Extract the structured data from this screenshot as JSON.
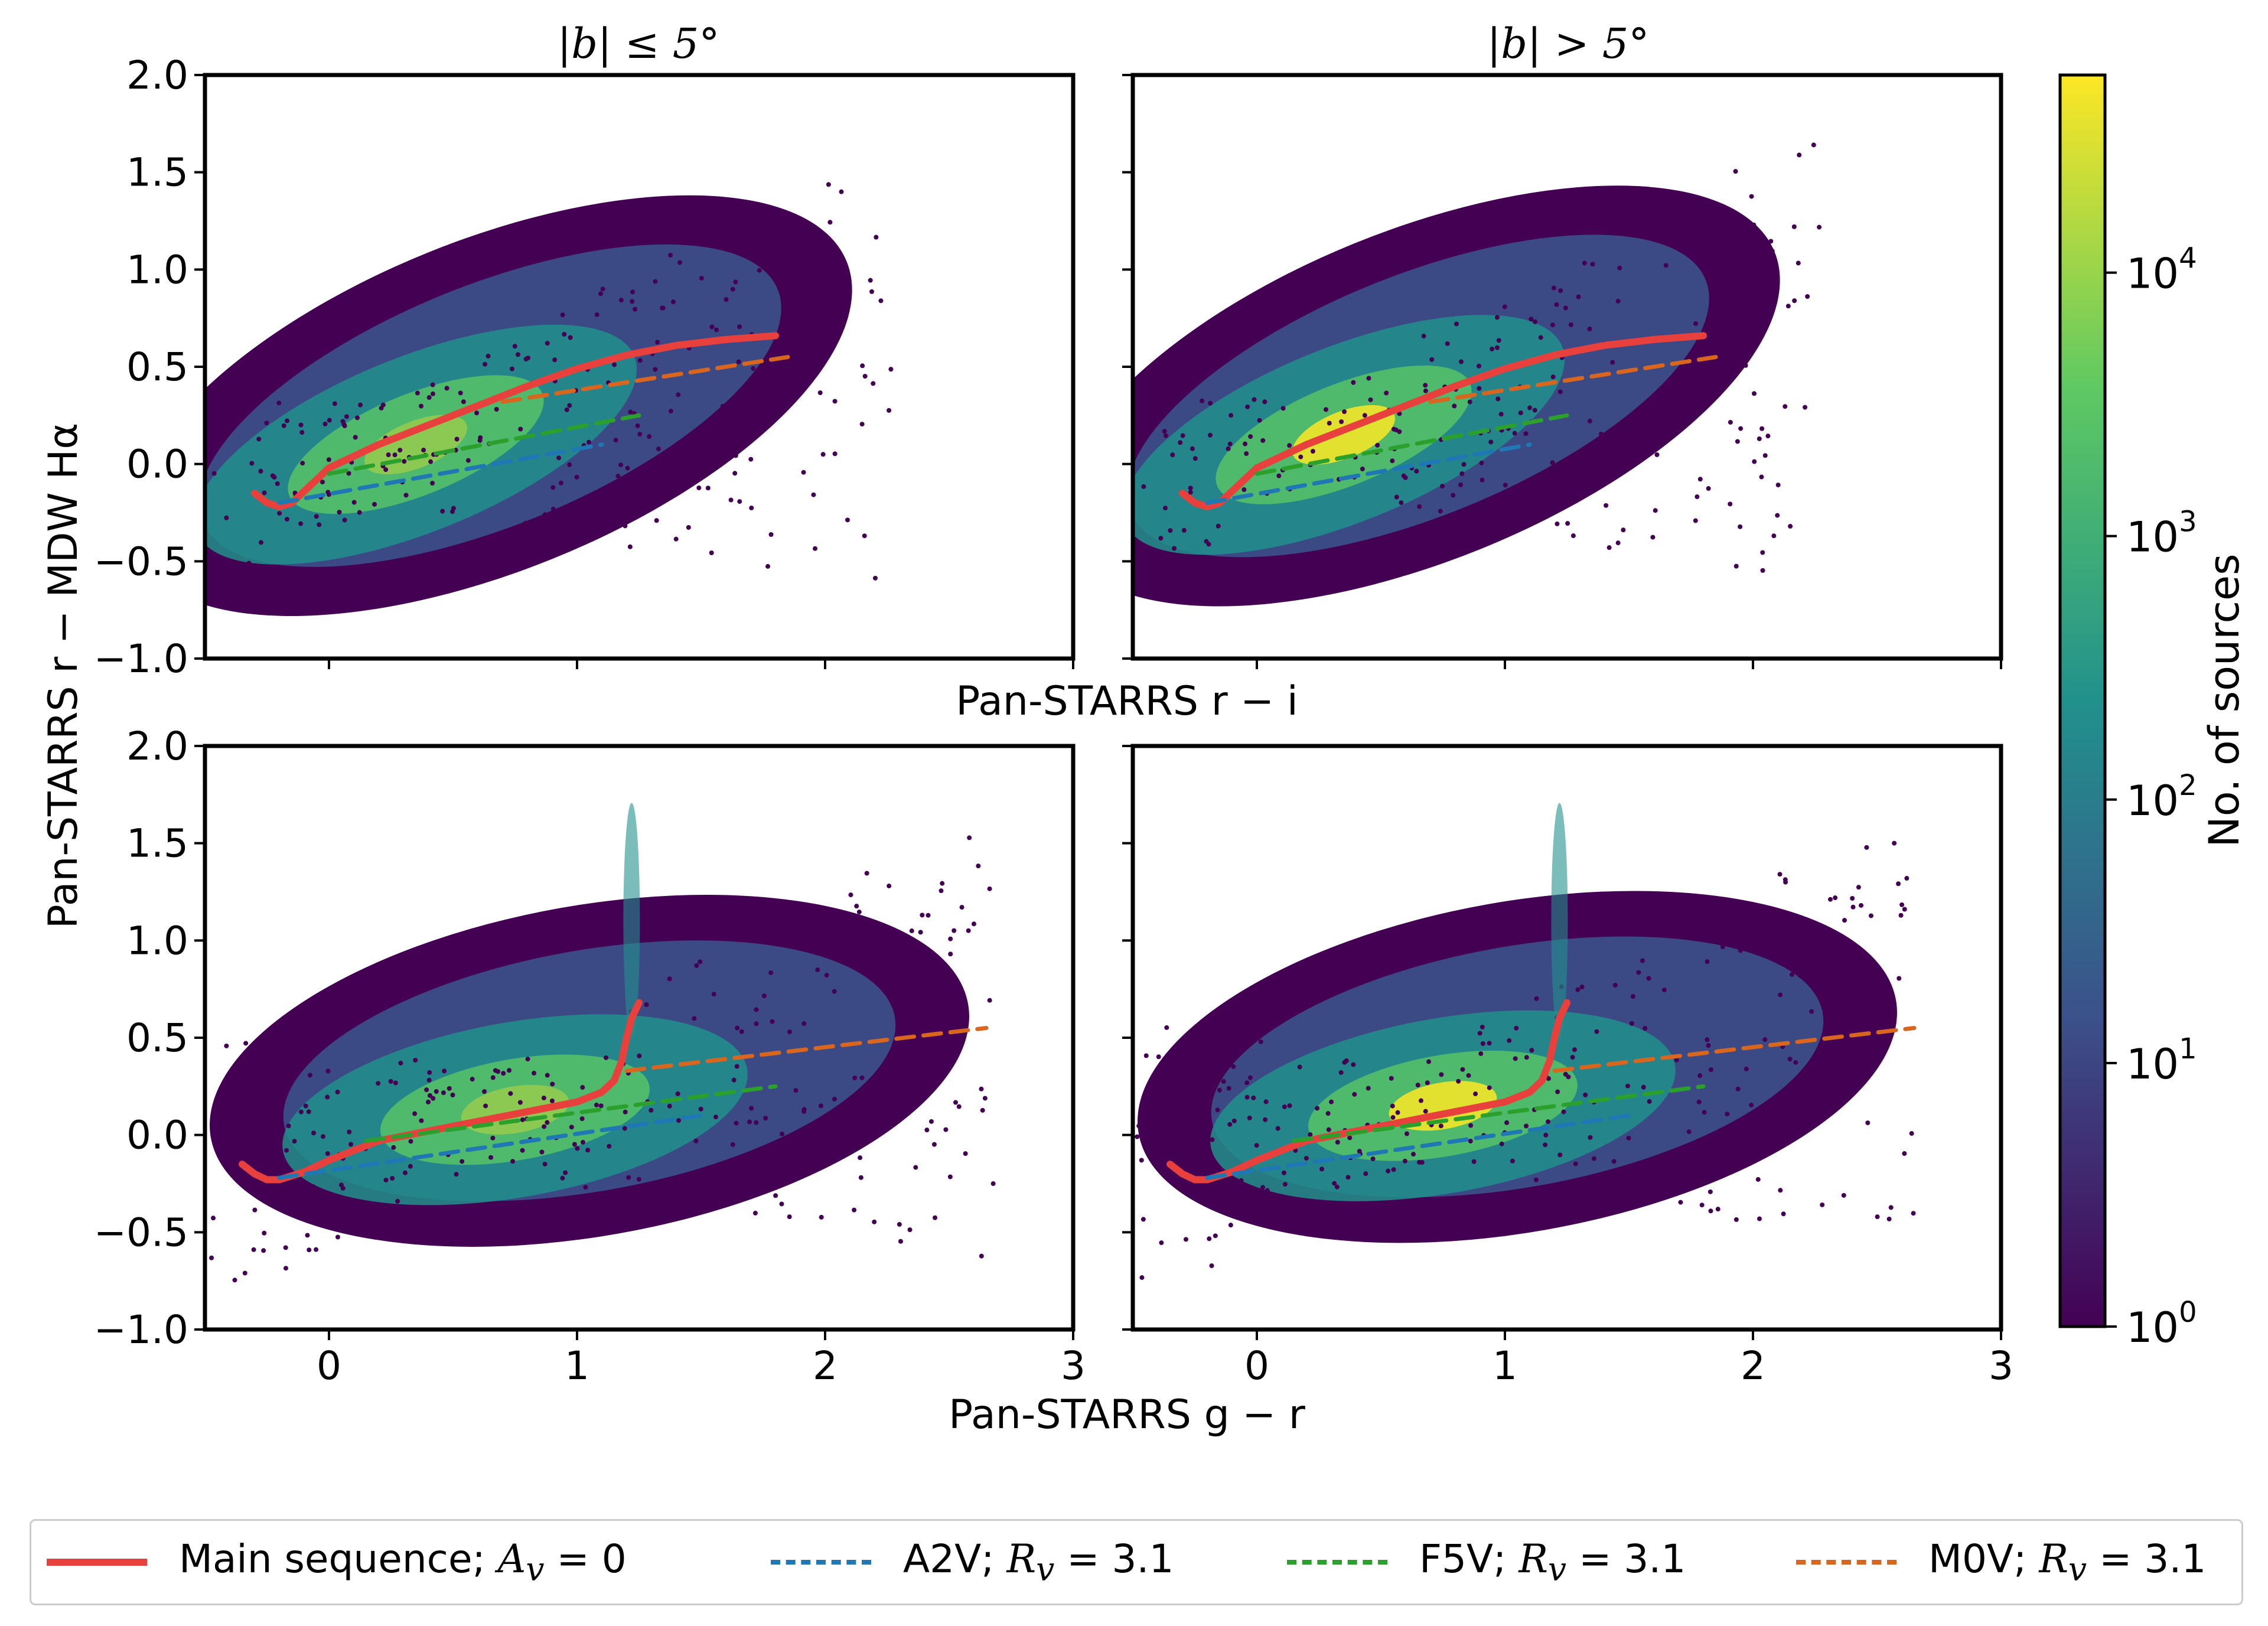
{
  "figure": {
    "panel_titles": [
      "|b| ≤ 5°",
      "|b| > 5°"
    ],
    "ylabel": "Pan-STARRS r − MDW Hα",
    "xlabel_top": "Pan-STARRS r − i",
    "xlabel_bottom": "Pan-STARRS g − r",
    "colorbar_label": "No. of sources",
    "colorbar_ticks": [
      "10",
      "10",
      "10",
      "10",
      "10"
    ],
    "colorbar_exponents": [
      "0",
      "1",
      "2",
      "3",
      "4"
    ]
  },
  "legend": {
    "items": [
      {
        "prefix": "Main sequence; ",
        "math": "A",
        "sub": "v",
        "suffix": " = 0"
      },
      {
        "prefix": "A2V; ",
        "math": "R",
        "sub": "v",
        "suffix": " = 3.1"
      },
      {
        "prefix": "F5V; ",
        "math": "R",
        "sub": "v",
        "suffix": " = 3.1"
      },
      {
        "prefix": "M0V; ",
        "math": "R",
        "sub": "v",
        "suffix": " = 3.1"
      }
    ]
  },
  "colors": {
    "main_sequence": "#e8403c",
    "a2v": "#1f77b4",
    "f5v": "#2ca02c",
    "m0v": "#d9661f",
    "viridis": [
      "#440154",
      "#3b528b",
      "#21918c",
      "#5ec962",
      "#fde725"
    ]
  },
  "chart_data": [
    {
      "type": "scatter",
      "panel": "top-left",
      "title": "|b| ≤ 5°",
      "xlabel": "Pan-STARRS r − i",
      "ylabel": "Pan-STARRS r − MDW Hα",
      "xlim": [
        -0.5,
        3.0
      ],
      "ylim": [
        -1.0,
        2.0
      ],
      "x_ticks": [
        "0",
        "1",
        "2",
        "3"
      ],
      "y_ticks": [
        "−1.0",
        "−0.5",
        "0.0",
        "0.5",
        "1.0",
        "1.5",
        "2.0"
      ],
      "density": {
        "peak": [
          0.2,
          0.05
        ],
        "peak_level": "high"
      },
      "series": [
        {
          "name": "Main sequence; Av=0",
          "x": [
            -0.3,
            -0.25,
            -0.2,
            -0.15,
            -0.1,
            0.0,
            0.2,
            0.4,
            0.6,
            0.8,
            1.0,
            1.2,
            1.4,
            1.6,
            1.8
          ],
          "y": [
            -0.15,
            -0.2,
            -0.22,
            -0.2,
            -0.14,
            -0.02,
            0.1,
            0.2,
            0.3,
            0.4,
            0.49,
            0.56,
            0.61,
            0.64,
            0.66
          ]
        },
        {
          "name": "A2V; Rv=3.1",
          "x": [
            -0.2,
            1.1
          ],
          "y": [
            -0.2,
            0.1
          ]
        },
        {
          "name": "F5V; Rv=3.1",
          "x": [
            0.0,
            1.25
          ],
          "y": [
            -0.05,
            0.25
          ]
        },
        {
          "name": "M0V; Rv=3.1",
          "x": [
            0.7,
            1.85
          ],
          "y": [
            0.32,
            0.55
          ]
        }
      ]
    },
    {
      "type": "scatter",
      "panel": "top-right",
      "title": "|b| > 5°",
      "xlabel": "Pan-STARRS r − i",
      "xlim": [
        -0.5,
        3.0
      ],
      "ylim": [
        -1.0,
        2.0
      ],
      "x_ticks": [
        "0",
        "1",
        "2",
        "3"
      ],
      "density": {
        "peak": [
          0.2,
          0.1
        ],
        "peak_level": "max"
      },
      "series": [
        {
          "name": "Main sequence; Av=0",
          "x": [
            -0.3,
            -0.25,
            -0.2,
            -0.15,
            -0.1,
            0.0,
            0.2,
            0.4,
            0.6,
            0.8,
            1.0,
            1.2,
            1.4,
            1.6,
            1.8
          ],
          "y": [
            -0.15,
            -0.2,
            -0.22,
            -0.2,
            -0.14,
            -0.02,
            0.1,
            0.2,
            0.3,
            0.4,
            0.49,
            0.56,
            0.61,
            0.64,
            0.66
          ]
        },
        {
          "name": "A2V; Rv=3.1",
          "x": [
            -0.2,
            1.1
          ],
          "y": [
            -0.2,
            0.1
          ]
        },
        {
          "name": "F5V; Rv=3.1",
          "x": [
            0.0,
            1.25
          ],
          "y": [
            -0.05,
            0.25
          ]
        },
        {
          "name": "M0V; Rv=3.1",
          "x": [
            0.7,
            1.85
          ],
          "y": [
            0.32,
            0.55
          ]
        }
      ]
    },
    {
      "type": "scatter",
      "panel": "bottom-left",
      "xlabel": "Pan-STARRS g − r",
      "ylabel": "Pan-STARRS r − MDW Hα",
      "xlim": [
        -0.5,
        3.0
      ],
      "ylim": [
        -1.0,
        2.0
      ],
      "x_ticks": [
        "0",
        "1",
        "2",
        "3"
      ],
      "y_ticks": [
        "−1.0",
        "−0.5",
        "0.0",
        "0.5",
        "1.0",
        "1.5",
        "2.0"
      ],
      "density": {
        "peak": [
          0.6,
          0.08
        ],
        "peak_level": "high"
      },
      "series": [
        {
          "name": "Main sequence; Av=0",
          "x": [
            -0.35,
            -0.3,
            -0.25,
            -0.2,
            -0.1,
            0.0,
            0.2,
            0.4,
            0.6,
            0.8,
            1.0,
            1.1,
            1.15,
            1.18,
            1.2,
            1.22,
            1.25
          ],
          "y": [
            -0.15,
            -0.2,
            -0.23,
            -0.23,
            -0.19,
            -0.13,
            -0.03,
            0.02,
            0.07,
            0.12,
            0.17,
            0.22,
            0.28,
            0.38,
            0.5,
            0.6,
            0.68
          ]
        },
        {
          "name": "A2V; Rv=3.1",
          "x": [
            -0.2,
            1.5
          ],
          "y": [
            -0.22,
            0.1
          ]
        },
        {
          "name": "F5V; Rv=3.1",
          "x": [
            0.15,
            1.8
          ],
          "y": [
            -0.03,
            0.25
          ]
        },
        {
          "name": "M0V; Rv=3.1",
          "x": [
            1.2,
            2.65
          ],
          "y": [
            0.33,
            0.55
          ]
        }
      ]
    },
    {
      "type": "scatter",
      "panel": "bottom-right",
      "xlabel": "Pan-STARRS g − r",
      "xlim": [
        -0.5,
        3.0
      ],
      "ylim": [
        -1.0,
        2.0
      ],
      "x_ticks": [
        "0",
        "1",
        "2",
        "3"
      ],
      "density": {
        "peak": [
          0.6,
          0.1
        ],
        "peak_level": "max"
      },
      "series": [
        {
          "name": "Main sequence; Av=0",
          "x": [
            -0.35,
            -0.3,
            -0.25,
            -0.2,
            -0.1,
            0.0,
            0.2,
            0.4,
            0.6,
            0.8,
            1.0,
            1.1,
            1.15,
            1.18,
            1.2,
            1.22,
            1.25
          ],
          "y": [
            -0.15,
            -0.2,
            -0.23,
            -0.23,
            -0.19,
            -0.13,
            -0.03,
            0.02,
            0.07,
            0.12,
            0.17,
            0.22,
            0.28,
            0.38,
            0.5,
            0.6,
            0.68
          ]
        },
        {
          "name": "A2V; Rv=3.1",
          "x": [
            -0.2,
            1.5
          ],
          "y": [
            -0.22,
            0.1
          ]
        },
        {
          "name": "F5V; Rv=3.1",
          "x": [
            0.15,
            1.8
          ],
          "y": [
            -0.03,
            0.25
          ]
        },
        {
          "name": "M0V; Rv=3.1",
          "x": [
            1.2,
            2.65
          ],
          "y": [
            0.33,
            0.55
          ]
        }
      ]
    }
  ]
}
